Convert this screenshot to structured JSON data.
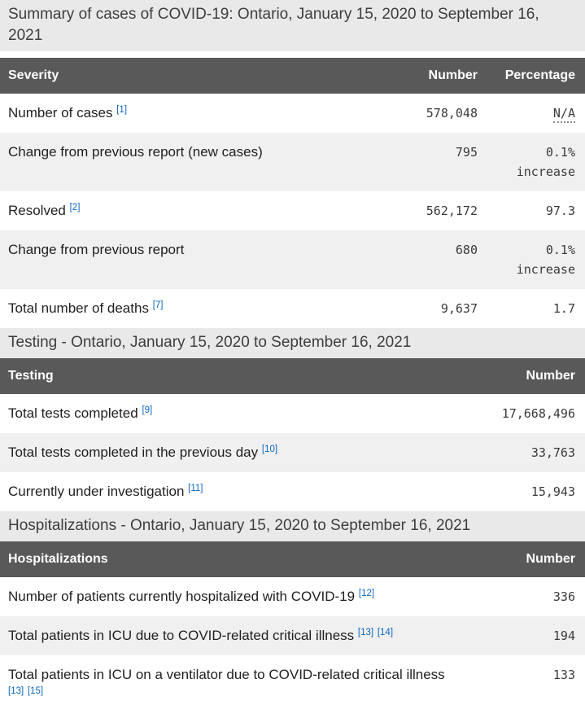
{
  "colors": {
    "header-bg": "#595959",
    "header-text": "#ffffff",
    "caption-bg": "#e9e9e9",
    "zebra-bg": "#f0f0f0",
    "row-bg": "#ffffff",
    "caption-text": "#3e3e3e",
    "label-text": "#1f1f1f",
    "value-text": "#3a3a3a",
    "link": "#0b66c2",
    "na-dot": "#8a8a8a"
  },
  "tables": [
    {
      "caption": "Summary of cases of COVID-19: Ontario, January 15, 2020 to September 16, 2021",
      "columns": [
        "Severity",
        "Number",
        "Percentage"
      ],
      "rows": [
        {
          "label": "Number of cases",
          "footnotes": [
            "[1]"
          ],
          "number": "578,048",
          "percentage": "N/A",
          "abbr": true
        },
        {
          "label": "Change from previous report (new cases)",
          "footnotes": [],
          "number": "795",
          "percentage": "0.1% increase"
        },
        {
          "label": "Resolved",
          "footnotes": [
            "[2]"
          ],
          "number": "562,172",
          "percentage": "97.3"
        },
        {
          "label": "Change from previous report",
          "footnotes": [],
          "number": "680",
          "percentage": "0.1% increase"
        },
        {
          "label": "Total number of deaths",
          "footnotes": [
            "[7]"
          ],
          "number": "9,637",
          "percentage": "1.7"
        }
      ]
    },
    {
      "caption": "Testing - Ontario, January 15, 2020 to September 16, 2021",
      "columns": [
        "Testing",
        "Number"
      ],
      "rows": [
        {
          "label": "Total tests completed",
          "footnotes": [
            "[9]"
          ],
          "number": "17,668,496"
        },
        {
          "label": "Total tests completed in the previous day",
          "footnotes": [
            "[10]"
          ],
          "number": "33,763"
        },
        {
          "label": "Currently under investigation",
          "footnotes": [
            "[11]"
          ],
          "number": "15,943"
        }
      ]
    },
    {
      "caption": "Hospitalizations - Ontario, January 15, 2020 to September 16, 2021",
      "columns": [
        "Hospitalizations",
        "Number"
      ],
      "rows": [
        {
          "label": "Number of patients currently hospitalized with COVID-19",
          "footnotes": [
            "[12]"
          ],
          "number": "336"
        },
        {
          "label": "Total patients in ICU due to COVID-related critical illness",
          "footnotes": [
            "[13]",
            "[14]"
          ],
          "number": "194"
        },
        {
          "label": "Total patients in ICU on a ventilator due to COVID-related critical illness",
          "footnotes": [
            "[13]",
            "[15]"
          ],
          "number": "133"
        }
      ]
    }
  ]
}
